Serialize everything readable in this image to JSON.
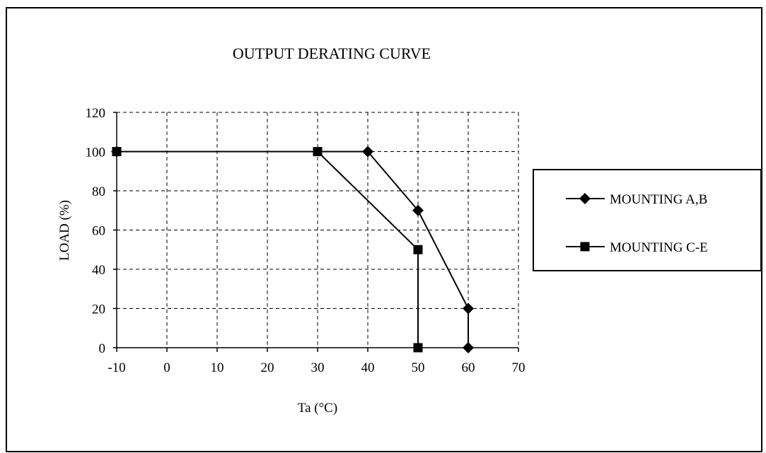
{
  "chart_data": {
    "type": "line",
    "title": "OUTPUT DERATING CURVE",
    "xlabel": "Ta (°C)",
    "ylabel": "LOAD (%)",
    "xlim": [
      -10,
      70
    ],
    "ylim": [
      0,
      120
    ],
    "xticks": [
      "-10",
      "0",
      "10",
      "20",
      "30",
      "40",
      "50",
      "60",
      "70"
    ],
    "yticks": [
      "0",
      "20",
      "40",
      "60",
      "80",
      "100",
      "120"
    ],
    "grid": true,
    "legend_position": "right",
    "series": [
      {
        "name": "MOUNTING A,B",
        "marker": "diamond",
        "color": "#000000",
        "points": [
          [
            -10,
            100
          ],
          [
            40,
            100
          ],
          [
            50,
            70
          ],
          [
            60,
            20
          ],
          [
            60,
            0
          ]
        ]
      },
      {
        "name": "MOUNTING C-E",
        "marker": "square",
        "color": "#000000",
        "points": [
          [
            -10,
            100
          ],
          [
            30,
            100
          ],
          [
            50,
            50
          ],
          [
            50,
            0
          ]
        ]
      }
    ]
  }
}
